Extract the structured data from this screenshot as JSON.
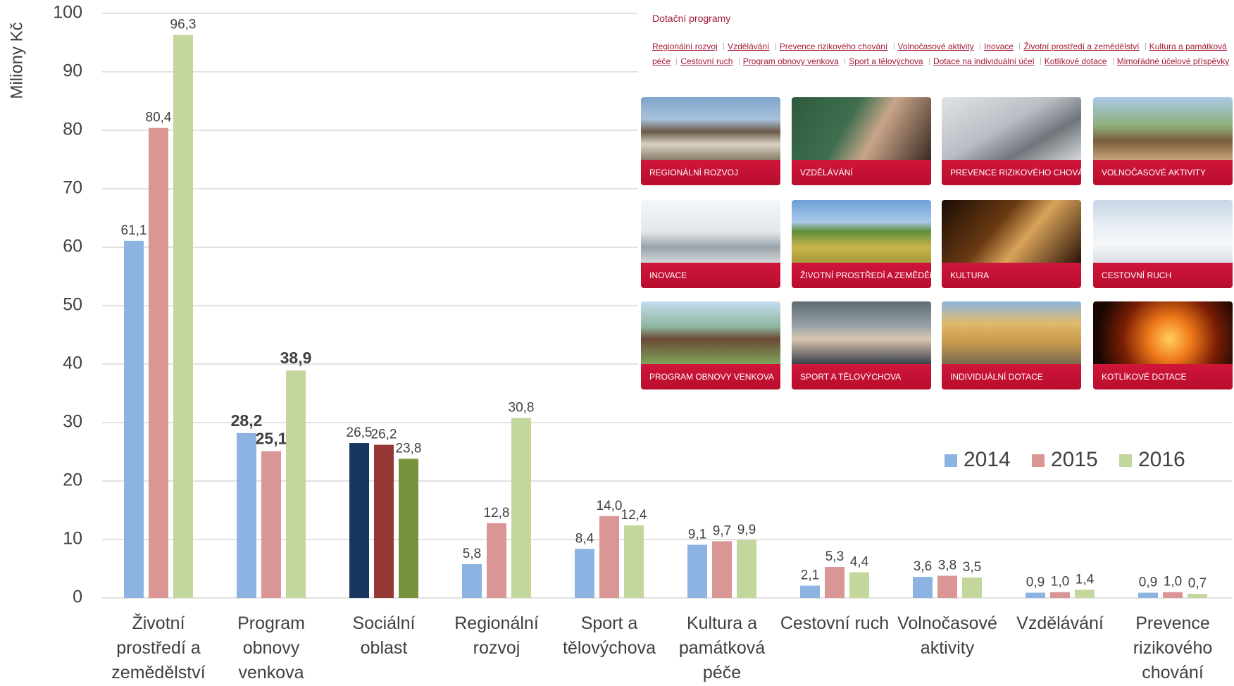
{
  "chart_data": {
    "type": "bar",
    "y_axis_label": "Miliony Kč",
    "categories": [
      "Životní prostředí a zemědělství",
      "Program obnovy venkova",
      "Sociální oblast",
      "Regionální rozvoj",
      "Sport a tělovýchova",
      "Kultura a památková péče",
      "Cestovní ruch",
      "Volnočasové aktivity",
      "Vzdělávání",
      "Prevence rizikového chování"
    ],
    "series": [
      {
        "name": "2014",
        "color": "#8db3e2",
        "colors": [
          "#8db3e2",
          "#8db3e2",
          "#17375e",
          "#8db3e2",
          "#8db3e2",
          "#8db3e2",
          "#8db3e2",
          "#8db3e2",
          "#8db3e2",
          "#8db3e2"
        ],
        "values": [
          61.1,
          28.2,
          26.5,
          5.8,
          8.4,
          9.1,
          2.1,
          3.6,
          0.9,
          0.9
        ],
        "value_labels": [
          "61,1",
          "28,2",
          "26,5",
          "5,8",
          "8,4",
          "9,1",
          "2,1",
          "3,6",
          "0,9",
          "0,9"
        ],
        "value_labels_bold": [
          false,
          true,
          false,
          false,
          false,
          false,
          false,
          false,
          false,
          false
        ]
      },
      {
        "name": "2015",
        "color": "#d99694",
        "colors": [
          "#d99694",
          "#d99694",
          "#953735",
          "#d99694",
          "#d99694",
          "#d99694",
          "#d99694",
          "#d99694",
          "#d99694",
          "#d99694"
        ],
        "values": [
          80.4,
          25.1,
          26.2,
          12.8,
          14.0,
          9.7,
          5.3,
          3.8,
          1.0,
          1.0
        ],
        "value_labels": [
          "80,4",
          "25,1",
          "26,2",
          "12,8",
          "14,0",
          "9,7",
          "5,3",
          "3,8",
          "1,0",
          "1,0"
        ],
        "value_labels_bold": [
          false,
          true,
          false,
          false,
          false,
          false,
          false,
          false,
          false,
          false
        ]
      },
      {
        "name": "2016",
        "color": "#c3d69b",
        "colors": [
          "#c3d69b",
          "#c3d69b",
          "#77933c",
          "#c3d69b",
          "#c3d69b",
          "#c3d69b",
          "#c3d69b",
          "#c3d69b",
          "#c3d69b",
          "#c3d69b"
        ],
        "values": [
          96.3,
          38.9,
          23.8,
          30.8,
          12.4,
          9.9,
          4.4,
          3.5,
          1.4,
          0.7
        ],
        "value_labels": [
          "96,3",
          "38,9",
          "23,8",
          "30,8",
          "12,4",
          "9,9",
          "4,4",
          "3,5",
          "1,4",
          "0,7"
        ],
        "value_labels_bold": [
          false,
          true,
          false,
          false,
          false,
          false,
          false,
          false,
          false,
          false
        ]
      }
    ],
    "ylim": [
      0,
      100
    ],
    "yticks": [
      0,
      10,
      20,
      30,
      40,
      50,
      60,
      70,
      80,
      90,
      100
    ],
    "grid": true,
    "legend": "right"
  },
  "screenshot": {
    "title": "Dotační programy",
    "links": [
      "Regionální rozvoj",
      "Vzdělávání",
      "Prevence rizikového chování",
      "Volnočasové aktivity",
      "Inovace",
      "Životní prostředí a zemědělství",
      "Kultura a památková péče",
      "Cestovní ruch",
      "Program obnovy venkova",
      "Sport a tělovýchova",
      "Dotace na individuální účel",
      "Kotlíkové dotace",
      "Mimořádné účelové příspěvky"
    ],
    "tiles": [
      "REGIONÁLNÍ ROZVOJ",
      "VZDĚLÁVÁNÍ",
      "PREVENCE RIZIKOVÉHO CHOVÁNÍ",
      "VOLNOČASOVÉ AKTIVITY",
      "INOVACE",
      "ŽIVOTNÍ PROSTŘEDÍ A ZEMĚDĚLSTVÍ",
      "KULTURA",
      "CESTOVNÍ RUCH",
      "PROGRAM OBNOVY VENKOVA",
      "SPORT A TĚLOVÝCHOVA",
      "INDIVIDUÁLNÍ DOTACE",
      "KOTLÍKOVÉ DOTACE"
    ]
  }
}
